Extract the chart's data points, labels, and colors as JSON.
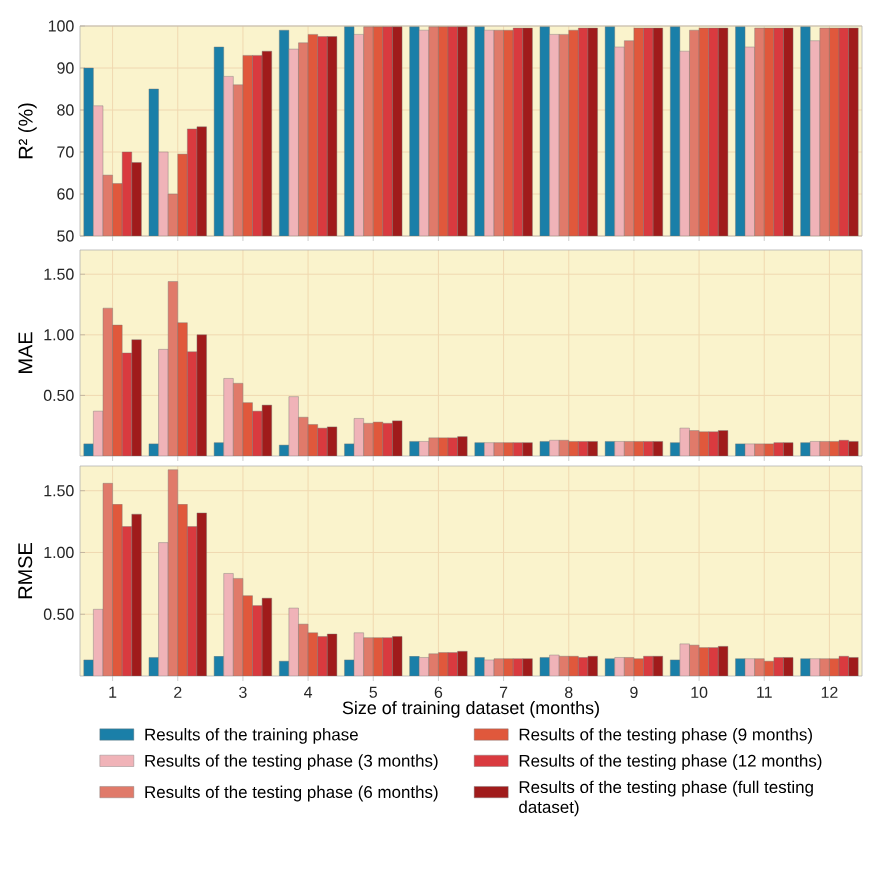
{
  "chart_data": [
    {
      "type": "bar",
      "ylabel": "R² (%)",
      "categories": [
        "1",
        "2",
        "3",
        "4",
        "5",
        "6",
        "7",
        "8",
        "9",
        "10",
        "11",
        "12"
      ],
      "ylim": [
        50,
        100
      ],
      "yticks": [
        50,
        60,
        70,
        80,
        90,
        100
      ],
      "grid": true,
      "tick_labels": "y",
      "series": [
        {
          "color": "#1a7fa8",
          "values": [
            90,
            85,
            95,
            99,
            99.8,
            99.8,
            99.8,
            99.8,
            99.8,
            99.8,
            99.8,
            99.8
          ]
        },
        {
          "color": "#f0b3b8",
          "values": [
            81,
            70,
            88,
            94.5,
            98,
            99,
            99,
            98,
            95,
            94,
            95,
            96.5
          ]
        },
        {
          "color": "#e07a6a",
          "values": [
            64.5,
            60,
            86,
            96,
            99.8,
            99.8,
            99,
            98,
            96.5,
            99,
            99.5,
            99.5
          ]
        },
        {
          "color": "#e0583c",
          "values": [
            62.5,
            69.5,
            93,
            98,
            99.8,
            99.8,
            99,
            99,
            99.5,
            99.5,
            99.5,
            99.5
          ]
        },
        {
          "color": "#d93a3f",
          "values": [
            70,
            75.5,
            93,
            97.5,
            99.8,
            99.8,
            99.5,
            99.5,
            99.5,
            99.5,
            99.5,
            99.5
          ]
        },
        {
          "color": "#a01b1b",
          "values": [
            67.5,
            76,
            94,
            97.5,
            99.8,
            99.8,
            99.5,
            99.5,
            99.5,
            99.5,
            99.5,
            99.5
          ]
        }
      ]
    },
    {
      "type": "bar",
      "ylabel": "MAE",
      "categories": [
        "1",
        "2",
        "3",
        "4",
        "5",
        "6",
        "7",
        "8",
        "9",
        "10",
        "11",
        "12"
      ],
      "ylim": [
        0,
        1.7
      ],
      "yticks": [
        {
          "value": 0.5,
          "label": "0.50"
        },
        {
          "value": 1.0,
          "label": "1.00"
        },
        {
          "value": 1.5,
          "label": "1.50"
        }
      ],
      "grid": true,
      "tick_labels": "y",
      "series": [
        {
          "color": "#1a7fa8",
          "values": [
            0.1,
            0.1,
            0.11,
            0.09,
            0.1,
            0.12,
            0.11,
            0.12,
            0.12,
            0.11,
            0.1,
            0.11
          ]
        },
        {
          "color": "#f0b3b8",
          "values": [
            0.37,
            0.88,
            0.64,
            0.49,
            0.31,
            0.12,
            0.11,
            0.13,
            0.12,
            0.23,
            0.1,
            0.12
          ]
        },
        {
          "color": "#e07a6a",
          "values": [
            1.22,
            1.44,
            0.6,
            0.32,
            0.27,
            0.15,
            0.11,
            0.13,
            0.12,
            0.21,
            0.1,
            0.12
          ]
        },
        {
          "color": "#e0583c",
          "values": [
            1.08,
            1.1,
            0.44,
            0.26,
            0.28,
            0.15,
            0.11,
            0.12,
            0.12,
            0.2,
            0.1,
            0.12
          ]
        },
        {
          "color": "#d93a3f",
          "values": [
            0.85,
            0.86,
            0.37,
            0.23,
            0.27,
            0.15,
            0.11,
            0.12,
            0.12,
            0.2,
            0.11,
            0.13
          ]
        },
        {
          "color": "#a01b1b",
          "values": [
            0.96,
            1.0,
            0.42,
            0.24,
            0.29,
            0.16,
            0.11,
            0.12,
            0.12,
            0.21,
            0.11,
            0.12
          ]
        }
      ]
    },
    {
      "type": "bar",
      "ylabel": "RMSE",
      "xlabel": "Size of training dataset (months)",
      "categories": [
        "1",
        "2",
        "3",
        "4",
        "5",
        "6",
        "7",
        "8",
        "9",
        "10",
        "11",
        "12"
      ],
      "ylim": [
        0,
        1.7
      ],
      "yticks": [
        {
          "value": 0.5,
          "label": "0.50"
        },
        {
          "value": 1.0,
          "label": "1.00"
        },
        {
          "value": 1.5,
          "label": "1.50"
        }
      ],
      "grid": true,
      "legend": "bottom",
      "series": [
        {
          "name": "Results of the training phase",
          "color": "#1a7fa8",
          "values": [
            0.13,
            0.15,
            0.16,
            0.12,
            0.13,
            0.16,
            0.15,
            0.15,
            0.14,
            0.13,
            0.14,
            0.14
          ]
        },
        {
          "name": "Results of the testing phase (3 months)",
          "color": "#f0b3b8",
          "values": [
            0.54,
            1.08,
            0.83,
            0.55,
            0.35,
            0.15,
            0.13,
            0.17,
            0.15,
            0.26,
            0.14,
            0.14
          ]
        },
        {
          "name": "Results of the testing phase (6 months)",
          "color": "#e07a6a",
          "values": [
            1.56,
            1.67,
            0.79,
            0.42,
            0.31,
            0.18,
            0.14,
            0.16,
            0.15,
            0.25,
            0.14,
            0.14
          ]
        },
        {
          "name": "Results of the testing phase (9 months)",
          "color": "#e0583c",
          "values": [
            1.39,
            1.39,
            0.65,
            0.35,
            0.31,
            0.19,
            0.14,
            0.16,
            0.14,
            0.23,
            0.12,
            0.14
          ]
        },
        {
          "name": "Results of the testing phase (12 months)",
          "color": "#d93a3f",
          "values": [
            1.21,
            1.21,
            0.57,
            0.32,
            0.31,
            0.19,
            0.14,
            0.15,
            0.16,
            0.23,
            0.15,
            0.16
          ]
        },
        {
          "name": "Results of the testing phase (full testing dataset)",
          "color": "#a01b1b",
          "values": [
            1.31,
            1.32,
            0.63,
            0.34,
            0.32,
            0.2,
            0.14,
            0.16,
            0.16,
            0.24,
            0.15,
            0.15
          ]
        }
      ]
    }
  ]
}
